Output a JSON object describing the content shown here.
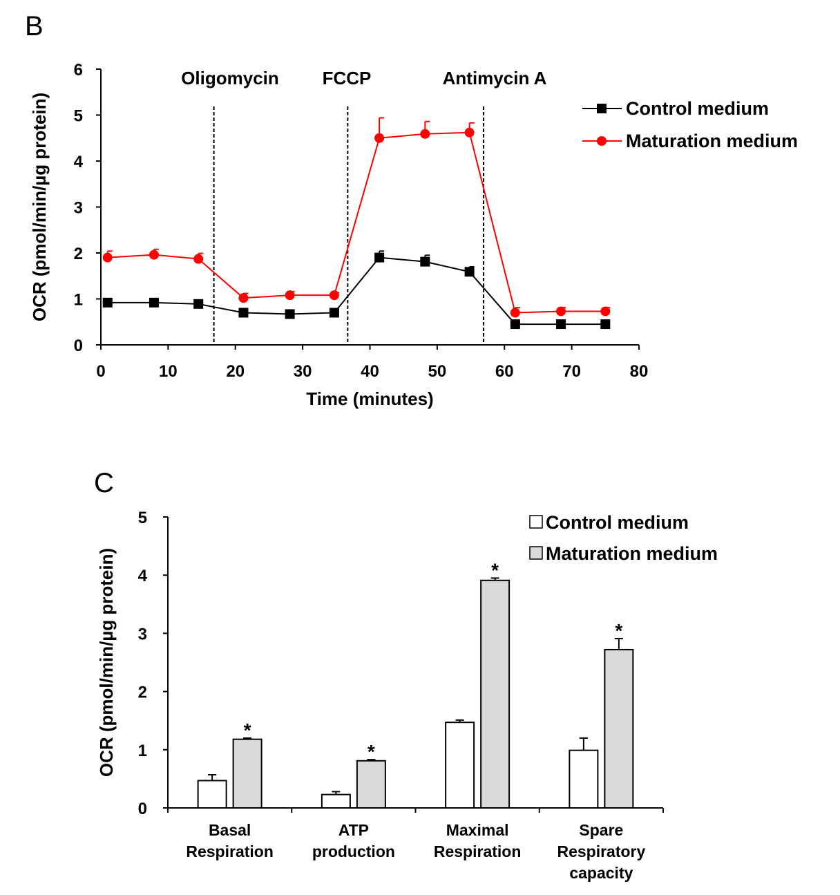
{
  "chart_data": [
    {
      "panel": "B",
      "type": "line",
      "ylabel": "OCR (pmol/min/µg protein)",
      "xlabel": "Time (minutes)",
      "xlim": [
        0,
        80
      ],
      "ylim": [
        0,
        6
      ],
      "xticks": [
        "0",
        "10",
        "20",
        "30",
        "40",
        "50",
        "60",
        "70",
        "80"
      ],
      "yticks": [
        "0",
        "1",
        "2",
        "3",
        "4",
        "5",
        "6"
      ],
      "legend_position": "top-right",
      "grid": false,
      "annotations": [
        {
          "text": "Oligomycin",
          "x": 16.8
        },
        {
          "text": "FCCP",
          "x": 36.7
        },
        {
          "text": "Antimycin  A",
          "x": 56.9
        }
      ],
      "series": [
        {
          "name": "Control medium",
          "color": "#000000",
          "marker": "square",
          "x": [
            1.0,
            7.9,
            14.5,
            21.2,
            28.1,
            34.7,
            41.4,
            48.2,
            54.8,
            61.6,
            68.4,
            75.0
          ],
          "y": [
            0.92,
            0.92,
            0.89,
            0.7,
            0.67,
            0.7,
            1.9,
            1.81,
            1.59,
            0.45,
            0.45,
            0.45
          ],
          "err": [
            0.05,
            0.05,
            0.05,
            0.05,
            0.05,
            0.05,
            0.14,
            0.14,
            0.11,
            0.05,
            0.05,
            0.05
          ]
        },
        {
          "name": "Maturation medium",
          "color": "#ff0000",
          "marker": "circle",
          "x": [
            1.0,
            7.9,
            14.5,
            21.2,
            28.1,
            34.7,
            41.4,
            48.2,
            54.8,
            61.6,
            68.4,
            75.0
          ],
          "y": [
            1.9,
            1.96,
            1.87,
            1.02,
            1.08,
            1.08,
            4.5,
            4.59,
            4.62,
            0.7,
            0.73,
            0.73
          ],
          "err": [
            0.14,
            0.12,
            0.12,
            0.1,
            0.08,
            0.06,
            0.44,
            0.27,
            0.21,
            0.11,
            0.08,
            0.08
          ]
        }
      ]
    },
    {
      "panel": "C",
      "type": "bar",
      "ylabel": "OCR (pmol/min/µg protein)",
      "ylim": [
        0,
        5
      ],
      "yticks": [
        "0",
        "1",
        "2",
        "3",
        "4",
        "5"
      ],
      "legend_position": "top-right",
      "grid": false,
      "categories": [
        [
          "Basal",
          "Respiration"
        ],
        [
          "ATP",
          "production"
        ],
        [
          "Maximal",
          "Respiration"
        ],
        [
          "Spare",
          "Respiratory",
          "capacity"
        ]
      ],
      "series": [
        {
          "name": "Control medium",
          "color": "#ffffff",
          "values": [
            0.47,
            0.23,
            1.47,
            0.99
          ],
          "err": [
            0.1,
            0.05,
            0.04,
            0.21
          ],
          "sig": [
            "",
            "",
            "",
            ""
          ]
        },
        {
          "name": "Maturation medium",
          "color": "#d9d9d9",
          "values": [
            1.18,
            0.81,
            3.91,
            2.72
          ],
          "err": [
            0.02,
            0.02,
            0.04,
            0.19
          ],
          "sig": [
            "*",
            "*",
            "*",
            "*"
          ]
        }
      ]
    }
  ]
}
